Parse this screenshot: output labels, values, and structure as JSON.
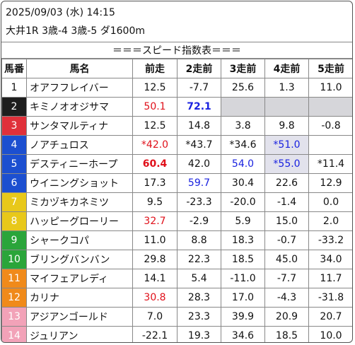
{
  "header": {
    "datetime": "2025/09/03 (水) 14:15",
    "race": "大井1R 3歳-4 3歳-5 ダ1600m"
  },
  "table_title": "＝＝＝スピード指数表＝＝＝",
  "columns": [
    "馬番",
    "馬名",
    "前走",
    "2走前",
    "3走前",
    "4走前",
    "5走前"
  ],
  "rows": [
    {
      "no": "1",
      "name": "オアフフレイバー",
      "c": [
        "12.5",
        "-7.7",
        "25.6",
        "1.3",
        "11.0"
      ]
    },
    {
      "no": "2",
      "name": "キミノオオジサマ",
      "c": [
        "50.1",
        "72.1",
        "",
        "",
        ""
      ]
    },
    {
      "no": "3",
      "name": "サンタマルティナ",
      "c": [
        "12.5",
        "14.8",
        "3.8",
        "9.8",
        "-0.8"
      ]
    },
    {
      "no": "4",
      "name": "ノアチュロス",
      "c": [
        "*42.0",
        "*43.7",
        "*34.6",
        "*51.0",
        ""
      ]
    },
    {
      "no": "5",
      "name": "デスティニーホープ",
      "c": [
        "60.4",
        "42.0",
        "54.0",
        "*55.0",
        "*11.4"
      ]
    },
    {
      "no": "6",
      "name": "ウイニングショット",
      "c": [
        "17.3",
        "59.7",
        "30.4",
        "22.6",
        "12.9"
      ]
    },
    {
      "no": "7",
      "name": "ミカヅキカネミツ",
      "c": [
        "9.5",
        "-23.3",
        "-20.0",
        "-1.4",
        "0.0"
      ]
    },
    {
      "no": "8",
      "name": "ハッピーグローリー",
      "c": [
        "32.7",
        "-2.9",
        "5.9",
        "15.0",
        "2.0"
      ]
    },
    {
      "no": "9",
      "name": "シャークコパ",
      "c": [
        "11.0",
        "8.8",
        "18.3",
        "-0.7",
        "-33.2"
      ]
    },
    {
      "no": "10",
      "name": "ブリングバンバン",
      "c": [
        "29.8",
        "22.3",
        "18.5",
        "45.0",
        "34.0"
      ]
    },
    {
      "no": "11",
      "name": "マイフェアレディ",
      "c": [
        "14.1",
        "5.4",
        "-11.0",
        "-7.7",
        "11.7"
      ]
    },
    {
      "no": "12",
      "name": "カリナ",
      "c": [
        "30.8",
        "28.3",
        "17.0",
        "-4.3",
        "-31.8"
      ]
    },
    {
      "no": "13",
      "name": "アジアンゴールド",
      "c": [
        "7.0",
        "23.3",
        "39.9",
        "20.9",
        "20.7"
      ]
    },
    {
      "no": "14",
      "name": "ジュリアン",
      "c": [
        "-22.1",
        "19.3",
        "34.6",
        "18.5",
        "10.0"
      ]
    }
  ],
  "colors": {
    "waku1": "#ffffff",
    "waku2": "#1e1e1e",
    "waku3": "#e0303a",
    "waku4": "#1c4fd0",
    "waku5": "#e8c81a",
    "waku6": "#2aa53a",
    "waku7": "#f08a1a",
    "waku8": "#f2a2b8",
    "red_value": "#e0101a",
    "blue_value": "#1a22e0"
  }
}
